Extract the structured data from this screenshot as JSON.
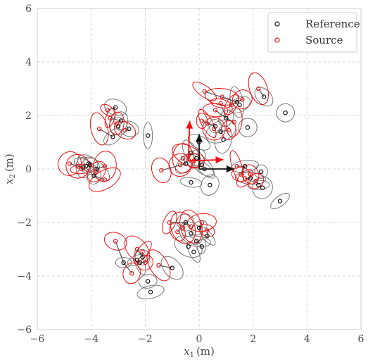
{
  "chart_data": {
    "type": "scatter",
    "title": "",
    "xlabel": "x",
    "xlabel_sub": "1",
    "xlabel_unit": "(m)",
    "ylabel": "x",
    "ylabel_sub": "2",
    "ylabel_unit": "(m)",
    "xlim": [
      -6,
      6
    ],
    "ylim": [
      -6,
      6
    ],
    "xticks": [
      -6,
      -4,
      -2,
      0,
      2,
      4,
      6
    ],
    "yticks": [
      -6,
      -4,
      -2,
      0,
      2,
      4,
      6
    ],
    "xtick_labels": [
      "−6",
      "−4",
      "−2",
      "0",
      "2",
      "4",
      "6"
    ],
    "ytick_labels": [
      "−6",
      "−4",
      "−2",
      "0",
      "2",
      "4",
      "6"
    ],
    "grid": true,
    "legend_position": "top-right",
    "colors": {
      "reference": "#111111",
      "source": "#ee1111",
      "ellipse_ref": "#777777",
      "link": "#555555"
    },
    "series": [
      {
        "name": "Reference",
        "marker": "circle-open",
        "color": "#111111",
        "points": [
          [
            -3.1,
            2.3
          ],
          [
            -2.9,
            1.8
          ],
          [
            -2.6,
            1.5
          ],
          [
            -3.2,
            1.2
          ],
          [
            -1.9,
            1.25
          ],
          [
            -3.0,
            1.6
          ],
          [
            -4.1,
            0.2
          ],
          [
            -4.3,
            0.05
          ],
          [
            -4.05,
            0.15
          ],
          [
            -3.9,
            -0.25
          ],
          [
            -4.2,
            0.1
          ],
          [
            -3.8,
            0.0
          ],
          [
            0.0,
            1.0
          ],
          [
            -0.3,
            0.6
          ],
          [
            -0.1,
            0.4
          ],
          [
            0.1,
            0.15
          ],
          [
            -0.5,
            0.2
          ],
          [
            0.2,
            0.0
          ],
          [
            -0.3,
            -0.5
          ],
          [
            0.4,
            -0.6
          ],
          [
            1.4,
            2.5
          ],
          [
            1.5,
            2.4
          ],
          [
            2.4,
            2.7
          ],
          [
            3.2,
            2.1
          ],
          [
            1.8,
            1.55
          ],
          [
            0.8,
            1.4
          ],
          [
            0.9,
            1.1
          ],
          [
            0.6,
            1.6
          ],
          [
            1.0,
            1.9
          ],
          [
            1.7,
            0.1
          ],
          [
            2.3,
            -0.1
          ],
          [
            2.2,
            -0.6
          ],
          [
            2.35,
            -0.7
          ],
          [
            3.0,
            -1.2
          ],
          [
            1.9,
            -0.35
          ],
          [
            -0.5,
            -2.0
          ],
          [
            -0.3,
            -2.4
          ],
          [
            -0.1,
            -2.7
          ],
          [
            0.1,
            -2.9
          ],
          [
            -0.4,
            -2.9
          ],
          [
            0.3,
            -2.5
          ],
          [
            -0.2,
            -3.1
          ],
          [
            0.0,
            -2.2
          ],
          [
            -2.8,
            -3.5
          ],
          [
            -2.2,
            -3.5
          ],
          [
            -2.1,
            -3.3
          ],
          [
            -1.9,
            -4.2
          ],
          [
            -1.8,
            -4.6
          ],
          [
            -1.0,
            -3.7
          ],
          [
            -2.3,
            -3.4
          ]
        ]
      },
      {
        "name": "Source",
        "marker": "circle-open",
        "color": "#ee1111",
        "points": [
          [
            -3.4,
            2.2
          ],
          [
            -3.3,
            1.9
          ],
          [
            -3.05,
            1.7
          ],
          [
            -3.7,
            1.5
          ],
          [
            -2.75,
            1.45
          ],
          [
            -4.8,
            0.2
          ],
          [
            -4.5,
            0.1
          ],
          [
            -3.8,
            -0.1
          ],
          [
            -3.5,
            0.1
          ],
          [
            -3.5,
            -0.4
          ],
          [
            -4.35,
            0.0
          ],
          [
            -1.4,
            -0.05
          ],
          [
            -0.6,
            0.4
          ],
          [
            -0.7,
            0.15
          ],
          [
            -0.2,
            0.3
          ],
          [
            -0.4,
            0.5
          ],
          [
            0.2,
            2.9
          ],
          [
            0.6,
            2.2
          ],
          [
            0.85,
            2.7
          ],
          [
            1.2,
            2.4
          ],
          [
            1.6,
            2.6
          ],
          [
            2.2,
            3.0
          ],
          [
            0.3,
            1.7
          ],
          [
            0.55,
            1.5
          ],
          [
            0.1,
            1.8
          ],
          [
            1.1,
            1.45
          ],
          [
            0.8,
            2.45
          ],
          [
            1.3,
            1.75
          ],
          [
            1.4,
            0.1
          ],
          [
            1.55,
            -0.2
          ],
          [
            1.9,
            -0.2
          ],
          [
            2.1,
            -0.45
          ],
          [
            1.7,
            -0.35
          ],
          [
            -1.1,
            -2.0
          ],
          [
            -0.6,
            -2.2
          ],
          [
            -0.3,
            -2.15
          ],
          [
            0.3,
            -2.3
          ],
          [
            0.1,
            -2.0
          ],
          [
            -0.8,
            -2.35
          ],
          [
            -3.1,
            -2.7
          ],
          [
            -2.3,
            -3.0
          ],
          [
            -2.1,
            -3.1
          ],
          [
            -1.5,
            -3.6
          ],
          [
            -2.5,
            -3.9
          ],
          [
            -2.0,
            -3.5
          ]
        ]
      }
    ],
    "arrows": [
      {
        "color": "#111111",
        "from": [
          0,
          0
        ],
        "to": [
          1.3,
          0
        ]
      },
      {
        "color": "#111111",
        "from": [
          0,
          0
        ],
        "to": [
          0,
          1.3
        ]
      },
      {
        "color": "#ee1111",
        "from": [
          -0.4,
          0.3
        ],
        "to": [
          0.9,
          0.35
        ]
      },
      {
        "color": "#ee1111",
        "from": [
          -0.4,
          0.3
        ],
        "to": [
          -0.35,
          1.8
        ]
      }
    ]
  },
  "legend": {
    "reference_label": "Reference",
    "source_label": "Source"
  }
}
